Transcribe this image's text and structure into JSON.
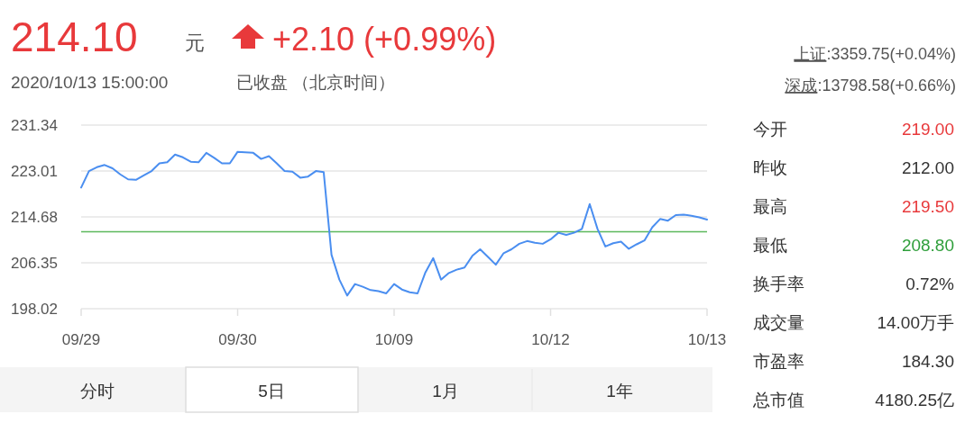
{
  "chart_data": {
    "type": "line",
    "title": "214.10",
    "annotations": [
      "元",
      "+2.10 (+0.99%)",
      "2020/10/13 15:00:00",
      "已收盘 （北京时间）",
      "上证:3359.75(+0.04%)",
      "深成:13798.58(+0.66%)",
      "今开",
      "219.00",
      "昨收",
      "212.00",
      "最高",
      "219.50",
      "最低",
      "208.80",
      "换手率",
      "0.72%",
      "成交量",
      "14.00万手",
      "市盈率",
      "184.30",
      "总市值",
      "4180.25亿",
      "分时",
      "5日",
      "1月",
      "1年"
    ],
    "categories": [
      "09/29",
      null,
      null,
      null,
      null,
      null,
      null,
      null,
      null,
      null,
      null,
      null,
      null,
      null,
      null,
      null,
      null,
      null,
      null,
      null,
      "09/30",
      null,
      null,
      null,
      null,
      null,
      null,
      null,
      null,
      null,
      null,
      null,
      null,
      null,
      null,
      null,
      null,
      null,
      null,
      null,
      "10/09",
      null,
      null,
      null,
      null,
      null,
      null,
      null,
      null,
      null,
      null,
      null,
      null,
      null,
      null,
      null,
      null,
      null,
      null,
      null,
      "10/12",
      null,
      null,
      null,
      null,
      null,
      null,
      null,
      null,
      null,
      null,
      null,
      null,
      null,
      null,
      null,
      null,
      null,
      null,
      null,
      "10/13"
    ],
    "ylim": [
      198.02,
      231.34
    ],
    "yticks": [
      198.02,
      206.35,
      214.68,
      223.01,
      231.34
    ],
    "grid": "y",
    "ref_lines": [
      {
        "axis": "y",
        "value": 212.0,
        "color": "#5cb85c"
      }
    ],
    "series": [
      {
        "color": "#4a8ef0",
        "values": [
          220.0,
          223.0,
          223.7,
          224.1,
          223.5,
          222.4,
          221.5,
          221.4,
          222.2,
          223.0,
          224.4,
          224.6,
          226.0,
          225.5,
          224.7,
          224.6,
          226.3,
          225.4,
          224.4,
          224.4,
          226.5,
          226.4,
          226.3,
          225.2,
          225.7,
          224.4,
          223.0,
          222.9,
          221.8,
          222.0,
          223.0,
          222.8,
          207.8,
          203.3,
          200.4,
          202.5,
          202.0,
          201.4,
          201.2,
          200.8,
          202.5,
          201.5,
          201.0,
          200.8,
          204.6,
          207.2,
          203.3,
          204.5,
          205.1,
          205.5,
          207.6,
          208.8,
          207.4,
          206.0,
          208.1,
          208.8,
          209.8,
          210.3,
          210.0,
          209.8,
          210.6,
          211.8,
          211.4,
          211.8,
          212.5,
          217.0,
          212.5,
          209.3,
          209.9,
          210.2,
          208.9,
          209.7,
          210.4,
          212.8,
          214.3,
          214.0,
          215.0,
          215.1,
          214.9,
          214.6,
          214.2
        ]
      }
    ]
  }
}
